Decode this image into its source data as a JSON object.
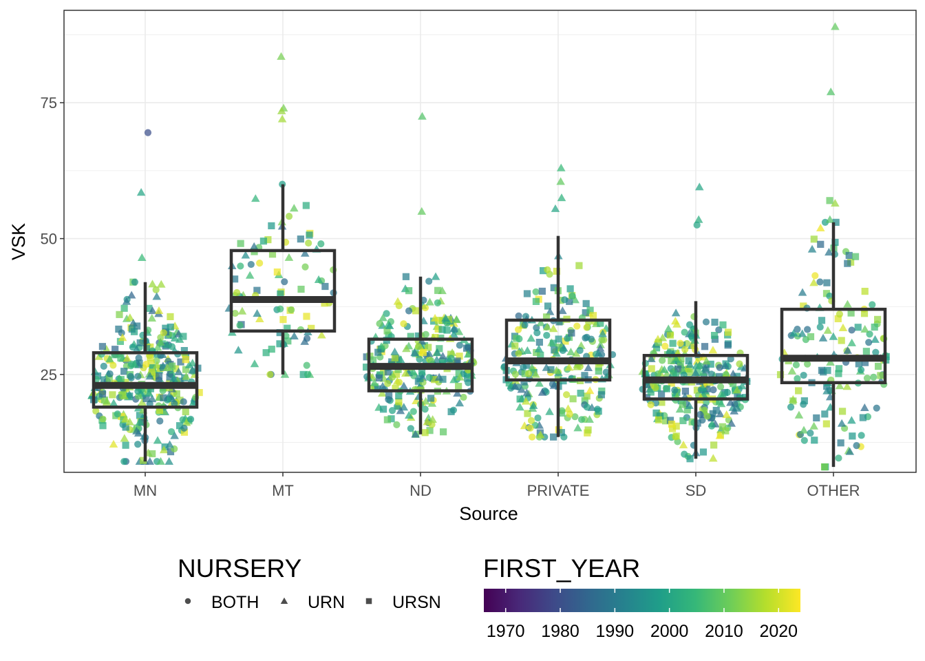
{
  "chart_data": {
    "type": "boxplot-jitter",
    "xlabel": "Source",
    "ylabel": "VSK",
    "ylim": [
      7,
      92
    ],
    "y_ticks": [
      25,
      50,
      75
    ],
    "y_tick_labels": [
      "25",
      "50",
      "75"
    ],
    "grid": true,
    "categories": [
      "MN",
      "MT",
      "ND",
      "PRIVATE",
      "SD",
      "OTHER"
    ],
    "boxes": [
      {
        "category": "MN",
        "lower_whisker": 9,
        "q1": 19,
        "median": 23,
        "q3": 29,
        "upper_whisker": 42
      },
      {
        "category": "MT",
        "lower_whisker": 25,
        "q1": 33,
        "median": 38.8,
        "q3": 47.8,
        "upper_whisker": 60
      },
      {
        "category": "ND",
        "lower_whisker": 14,
        "q1": 22,
        "median": 26.5,
        "q3": 31.5,
        "upper_whisker": 43
      },
      {
        "category": "PRIVATE",
        "lower_whisker": 13.5,
        "q1": 24,
        "median": 27.5,
        "q3": 35,
        "upper_whisker": 50.5
      },
      {
        "category": "SD",
        "lower_whisker": 9.5,
        "q1": 20.5,
        "median": 24,
        "q3": 28.5,
        "upper_whisker": 38.5
      },
      {
        "category": "OTHER",
        "lower_whisker": 8,
        "q1": 23.5,
        "median": 28,
        "q3": 37,
        "upper_whisker": 53
      }
    ],
    "outliers": [
      {
        "category": "MN",
        "y": 69.5,
        "shape": "circle",
        "year": 1980
      },
      {
        "category": "MN",
        "y": 58.5,
        "shape": "triangle",
        "year": 2000
      },
      {
        "category": "MN",
        "y": 46.5,
        "shape": "triangle",
        "year": 2005
      },
      {
        "category": "MT",
        "y": 83.5,
        "shape": "triangle",
        "year": 2012
      },
      {
        "category": "MT",
        "y": 74,
        "shape": "triangle",
        "year": 2012
      },
      {
        "category": "MT",
        "y": 73.5,
        "shape": "triangle",
        "year": 2015
      },
      {
        "category": "MT",
        "y": 72,
        "shape": "triangle",
        "year": 2016
      },
      {
        "category": "ND",
        "y": 72.5,
        "shape": "triangle",
        "year": 2008
      },
      {
        "category": "ND",
        "y": 55,
        "shape": "triangle",
        "year": 2010
      },
      {
        "category": "PRIVATE",
        "y": 63,
        "shape": "triangle",
        "year": 2005
      },
      {
        "category": "PRIVATE",
        "y": 60.5,
        "shape": "triangle",
        "year": 2010
      },
      {
        "category": "PRIVATE",
        "y": 57.5,
        "shape": "triangle",
        "year": 2003
      },
      {
        "category": "PRIVATE",
        "y": 55.5,
        "shape": "triangle",
        "year": 2000
      },
      {
        "category": "SD",
        "y": 59.5,
        "shape": "triangle",
        "year": 2000
      },
      {
        "category": "SD",
        "y": 53.5,
        "shape": "triangle",
        "year": 2002
      },
      {
        "category": "SD",
        "y": 52.5,
        "shape": "circle",
        "year": 2000
      },
      {
        "category": "OTHER",
        "y": 89,
        "shape": "triangle",
        "year": 2010
      },
      {
        "category": "OTHER",
        "y": 77,
        "shape": "triangle",
        "year": 2008
      },
      {
        "category": "OTHER",
        "y": 57,
        "shape": "square",
        "year": 2010
      },
      {
        "category": "OTHER",
        "y": 56.5,
        "shape": "triangle",
        "year": 2015
      },
      {
        "category": "OTHER",
        "y": 53.5,
        "shape": "triangle",
        "year": 2008
      }
    ],
    "colors": {
      "box_stroke": "#333333",
      "grid": "#ebebeb",
      "panel_border": "#333333",
      "viridis": [
        "#440154",
        "#482878",
        "#3E4A89",
        "#31688E",
        "#26828E",
        "#1F9E89",
        "#35B779",
        "#6DCD59",
        "#B4DE2C",
        "#FDE725"
      ]
    },
    "legends": {
      "shape": {
        "title": "NURSERY",
        "items": [
          {
            "label": "BOTH",
            "shape": "circle"
          },
          {
            "label": "URN",
            "shape": "triangle"
          },
          {
            "label": "URSN",
            "shape": "square"
          }
        ]
      },
      "color": {
        "title": "FIRST_YEAR",
        "range": [
          1966,
          2024
        ],
        "ticks": [
          1970,
          1980,
          1990,
          2000,
          2010,
          2020
        ],
        "tick_labels": [
          "1970",
          "1980",
          "1990",
          "2000",
          "2010",
          "2020"
        ]
      }
    }
  }
}
